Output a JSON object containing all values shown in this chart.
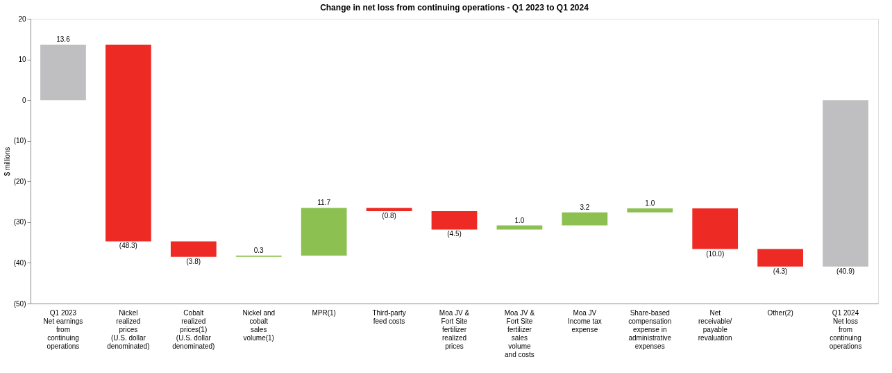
{
  "chart_data": {
    "type": "bar",
    "title": "Change in net loss from continuing operations  - Q1 2023 to Q1 2024",
    "ylabel": "$ millions",
    "categories": [
      "Q1 2023\nNet earnings\nfrom\ncontinuing\noperations",
      "Nickel\nrealized\nprices\n(U.S. dollar\ndenominated)",
      "Cobalt\nrealized\nprices(1)\n(U.S. dollar\ndenominated)",
      "Nickel and\ncobalt\nsales\nvolume(1)",
      "MPR(1)",
      "Third-party\nfeed costs",
      "Moa JV &\nFort Site\nfertilizer\nrealized\nprices",
      "Moa JV &\nFort Site\nfertilizer\nsales\nvolume\nand costs",
      "Moa JV\nIncome tax\nexpense",
      "Share-based\ncompensation\nexpense in\nadministrative\nexpenses",
      "Net\nreceivable/\npayable\nrevaluation",
      "Other(2)",
      "Q1 2024\nNet loss\nfrom\ncontinuing\noperations"
    ],
    "values": [
      13.6,
      -48.3,
      -3.8,
      0.3,
      11.7,
      -0.8,
      -4.5,
      1.0,
      3.2,
      1.0,
      -10.0,
      -4.3,
      -40.9
    ],
    "base": [
      0,
      13.6,
      -34.7,
      -38.5,
      -38.2,
      -26.5,
      -27.3,
      -31.8,
      -30.8,
      -27.6,
      -26.6,
      -36.6,
      0
    ],
    "colors": [
      "#bfbfc1",
      "#ee2a24",
      "#ee2a24",
      "#8cc152",
      "#8cc152",
      "#ee2a24",
      "#ee2a24",
      "#8cc152",
      "#8cc152",
      "#8cc152",
      "#ee2a24",
      "#ee2a24",
      "#bfbfc1"
    ],
    "value_labels": [
      "13.6",
      "(48.3)",
      "(3.8)",
      "0.3",
      "11.7",
      "(0.8)",
      "(4.5)",
      "1.0",
      "3.2",
      "1.0",
      "(10.0)",
      "(4.3)",
      "(40.9)"
    ],
    "ylim": [
      -50,
      20
    ],
    "yticks": [
      {
        "value": -50,
        "label": "(50)"
      },
      {
        "value": -40,
        "label": "(40)"
      },
      {
        "value": -30,
        "label": "(30)"
      },
      {
        "value": -20,
        "label": "(20)"
      },
      {
        "value": -10,
        "label": "(10)"
      },
      0,
      10,
      20
    ],
    "grid": false
  }
}
